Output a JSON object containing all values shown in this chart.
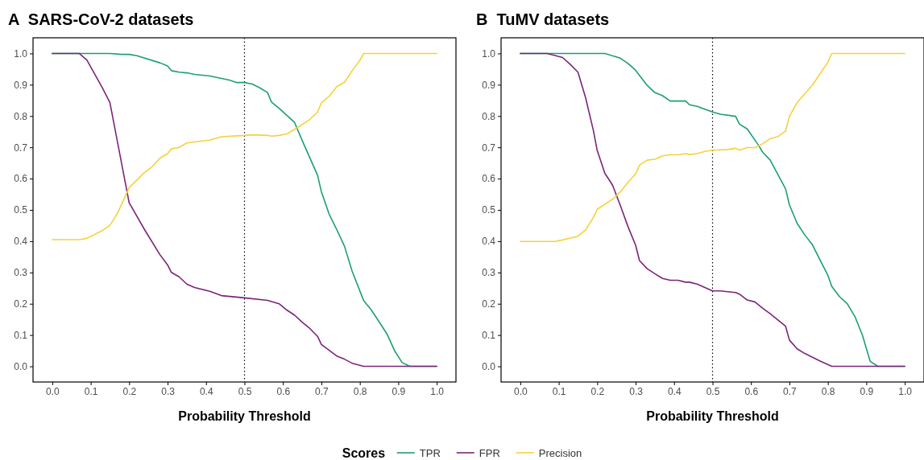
{
  "chart_data": [
    {
      "type": "line",
      "title": "A  SARS-CoV-2 datasets",
      "xlabel": "Probability Threshold",
      "legend": "bottom",
      "legend_title": "Scores",
      "grid": false,
      "xlim": [
        -0.05,
        1.05
      ],
      "ylim": [
        -0.05,
        1.05
      ],
      "xticks": [
        {
          "value": 0,
          "label": "0.0"
        },
        {
          "value": 0.1,
          "label": "0.1"
        },
        {
          "value": 0.2,
          "label": "0.2"
        },
        {
          "value": 0.3,
          "label": "0.3"
        },
        {
          "value": 0.4,
          "label": "0.4"
        },
        {
          "value": 0.5,
          "label": "0.5"
        },
        {
          "value": 0.6,
          "label": "0.6"
        },
        {
          "value": 0.7,
          "label": "0.7"
        },
        {
          "value": 0.8,
          "label": "0.8"
        },
        {
          "value": 0.9,
          "label": "0.9"
        },
        {
          "value": 1,
          "label": "1.0"
        }
      ],
      "yticks": [
        {
          "value": 0,
          "label": "0.0"
        },
        {
          "value": 0.1,
          "label": "0.1"
        },
        {
          "value": 0.2,
          "label": "0.2"
        },
        {
          "value": 0.3,
          "label": "0.3"
        },
        {
          "value": 0.4,
          "label": "0.4"
        },
        {
          "value": 0.5,
          "label": "0.5"
        },
        {
          "value": 0.6,
          "label": "0.6"
        },
        {
          "value": 0.7,
          "label": "0.7"
        },
        {
          "value": 0.8,
          "label": "0.8"
        },
        {
          "value": 0.9,
          "label": "0.9"
        },
        {
          "value": 1,
          "label": "1.0"
        }
      ],
      "ref_lines": [
        {
          "axis": "x",
          "value": 0.5,
          "line_style": "dotted",
          "color": "#000000"
        }
      ],
      "series": [
        {
          "name": "TPR",
          "color": "#1b9e77",
          "x": [
            0,
            0.07,
            0.15,
            0.18,
            0.2,
            0.22,
            0.28,
            0.3,
            0.31,
            0.33,
            0.35,
            0.37,
            0.41,
            0.44,
            0.46,
            0.48,
            0.5,
            0.52,
            0.54,
            0.56,
            0.57,
            0.59,
            0.63,
            0.65,
            0.69,
            0.7,
            0.72,
            0.74,
            0.76,
            0.78,
            0.81,
            0.83,
            0.87,
            0.89,
            0.91,
            0.93,
            1
          ],
          "values": [
            1,
            1,
            1,
            0.997,
            0.997,
            0.993,
            0.97,
            0.96,
            0.945,
            0.94,
            0.938,
            0.933,
            0.928,
            0.92,
            0.915,
            0.907,
            0.907,
            0.902,
            0.89,
            0.875,
            0.845,
            0.825,
            0.78,
            0.722,
            0.611,
            0.558,
            0.487,
            0.437,
            0.384,
            0.304,
            0.21,
            0.18,
            0.105,
            0.051,
            0.012,
            0,
            0
          ]
        },
        {
          "name": "FPR",
          "color": "#7b2479",
          "x": [
            0,
            0.07,
            0.09,
            0.13,
            0.15,
            0.2,
            0.24,
            0.28,
            0.3,
            0.31,
            0.33,
            0.35,
            0.37,
            0.41,
            0.44,
            0.5,
            0.56,
            0.59,
            0.61,
            0.63,
            0.65,
            0.67,
            0.69,
            0.7,
            0.74,
            0.76,
            0.78,
            0.81,
            1
          ],
          "values": [
            1,
            1,
            0.979,
            0.891,
            0.843,
            0.523,
            0.437,
            0.357,
            0.324,
            0.3,
            0.286,
            0.263,
            0.252,
            0.24,
            0.226,
            0.219,
            0.211,
            0.2,
            0.18,
            0.164,
            0.141,
            0.121,
            0.096,
            0.07,
            0.033,
            0.023,
            0.01,
            0,
            0
          ]
        },
        {
          "name": "Precision",
          "color": "#f5d13b",
          "x": [
            0,
            0.07,
            0.09,
            0.13,
            0.15,
            0.17,
            0.2,
            0.24,
            0.26,
            0.28,
            0.3,
            0.31,
            0.33,
            0.35,
            0.41,
            0.44,
            0.5,
            0.52,
            0.56,
            0.57,
            0.59,
            0.61,
            0.63,
            0.67,
            0.69,
            0.7,
            0.72,
            0.74,
            0.76,
            0.78,
            0.8,
            0.81,
            1
          ],
          "values": [
            0.405,
            0.405,
            0.409,
            0.434,
            0.451,
            0.49,
            0.571,
            0.62,
            0.638,
            0.665,
            0.68,
            0.695,
            0.7,
            0.714,
            0.723,
            0.734,
            0.738,
            0.74,
            0.738,
            0.736,
            0.738,
            0.743,
            0.757,
            0.789,
            0.813,
            0.842,
            0.863,
            0.894,
            0.908,
            0.945,
            0.978,
            1,
            1
          ]
        }
      ]
    },
    {
      "type": "line",
      "title": "B  TuMV datasets",
      "xlabel": "Probability Threshold",
      "grid": false,
      "xlim": [
        -0.05,
        1.05
      ],
      "ylim": [
        -0.05,
        1.05
      ],
      "xticks": [
        {
          "value": 0,
          "label": "0.0"
        },
        {
          "value": 0.1,
          "label": "0.1"
        },
        {
          "value": 0.2,
          "label": "0.2"
        },
        {
          "value": 0.3,
          "label": "0.3"
        },
        {
          "value": 0.4,
          "label": "0.4"
        },
        {
          "value": 0.5,
          "label": "0.5"
        },
        {
          "value": 0.6,
          "label": "0.6"
        },
        {
          "value": 0.7,
          "label": "0.7"
        },
        {
          "value": 0.8,
          "label": "0.8"
        },
        {
          "value": 0.9,
          "label": "0.9"
        },
        {
          "value": 1,
          "label": "1.0"
        }
      ],
      "yticks": [
        {
          "value": 0,
          "label": "0.0"
        },
        {
          "value": 0.1,
          "label": "0.1"
        },
        {
          "value": 0.2,
          "label": "0.2"
        },
        {
          "value": 0.3,
          "label": "0.3"
        },
        {
          "value": 0.4,
          "label": "0.4"
        },
        {
          "value": 0.5,
          "label": "0.5"
        },
        {
          "value": 0.6,
          "label": "0.6"
        },
        {
          "value": 0.7,
          "label": "0.7"
        },
        {
          "value": 0.8,
          "label": "0.8"
        },
        {
          "value": 0.9,
          "label": "0.9"
        },
        {
          "value": 1,
          "label": "1.0"
        }
      ],
      "ref_lines": [
        {
          "axis": "x",
          "value": 0.5,
          "line_style": "dotted",
          "color": "#000000"
        }
      ],
      "series": [
        {
          "name": "TPR",
          "color": "#1b9e77",
          "x": [
            0,
            0.22,
            0.26,
            0.28,
            0.3,
            0.33,
            0.35,
            0.37,
            0.39,
            0.43,
            0.44,
            0.46,
            0.5,
            0.52,
            0.56,
            0.57,
            0.59,
            0.62,
            0.63,
            0.65,
            0.69,
            0.7,
            0.72,
            0.74,
            0.76,
            0.78,
            0.8,
            0.81,
            0.83,
            0.85,
            0.87,
            0.89,
            0.91,
            0.93,
            1
          ],
          "values": [
            1,
            1,
            0.985,
            0.968,
            0.946,
            0.898,
            0.875,
            0.865,
            0.848,
            0.848,
            0.836,
            0.831,
            0.813,
            0.806,
            0.799,
            0.774,
            0.759,
            0.706,
            0.685,
            0.659,
            0.567,
            0.516,
            0.457,
            0.42,
            0.388,
            0.339,
            0.291,
            0.256,
            0.223,
            0.201,
            0.16,
            0.099,
            0.016,
            0,
            0
          ]
        },
        {
          "name": "FPR",
          "color": "#7b2479",
          "x": [
            0,
            0.07,
            0.11,
            0.13,
            0.15,
            0.17,
            0.19,
            0.2,
            0.22,
            0.24,
            0.26,
            0.28,
            0.3,
            0.31,
            0.33,
            0.35,
            0.37,
            0.39,
            0.41,
            0.43,
            0.44,
            0.46,
            0.5,
            0.52,
            0.56,
            0.57,
            0.59,
            0.61,
            0.63,
            0.65,
            0.69,
            0.7,
            0.72,
            0.74,
            0.76,
            0.78,
            0.81,
            1
          ],
          "values": [
            1,
            1,
            0.987,
            0.965,
            0.94,
            0.858,
            0.754,
            0.69,
            0.617,
            0.579,
            0.515,
            0.447,
            0.387,
            0.338,
            0.312,
            0.296,
            0.281,
            0.275,
            0.275,
            0.269,
            0.269,
            0.263,
            0.241,
            0.241,
            0.236,
            0.231,
            0.212,
            0.206,
            0.186,
            0.168,
            0.128,
            0.084,
            0.056,
            0.041,
            0.029,
            0.017,
            0,
            0
          ]
        },
        {
          "name": "Precision",
          "color": "#f5d13b",
          "x": [
            0,
            0.09,
            0.11,
            0.15,
            0.17,
            0.19,
            0.2,
            0.24,
            0.26,
            0.28,
            0.3,
            0.31,
            0.33,
            0.35,
            0.37,
            0.39,
            0.41,
            0.43,
            0.44,
            0.46,
            0.48,
            0.5,
            0.54,
            0.56,
            0.57,
            0.59,
            0.61,
            0.63,
            0.65,
            0.67,
            0.69,
            0.7,
            0.72,
            0.76,
            0.8,
            0.81,
            1
          ],
          "values": [
            0.399,
            0.399,
            0.404,
            0.416,
            0.436,
            0.476,
            0.502,
            0.534,
            0.557,
            0.588,
            0.615,
            0.643,
            0.659,
            0.662,
            0.673,
            0.676,
            0.676,
            0.68,
            0.677,
            0.68,
            0.687,
            0.691,
            0.693,
            0.697,
            0.691,
            0.699,
            0.699,
            0.711,
            0.728,
            0.734,
            0.752,
            0.799,
            0.843,
            0.899,
            0.972,
            1,
            1
          ]
        }
      ]
    }
  ]
}
